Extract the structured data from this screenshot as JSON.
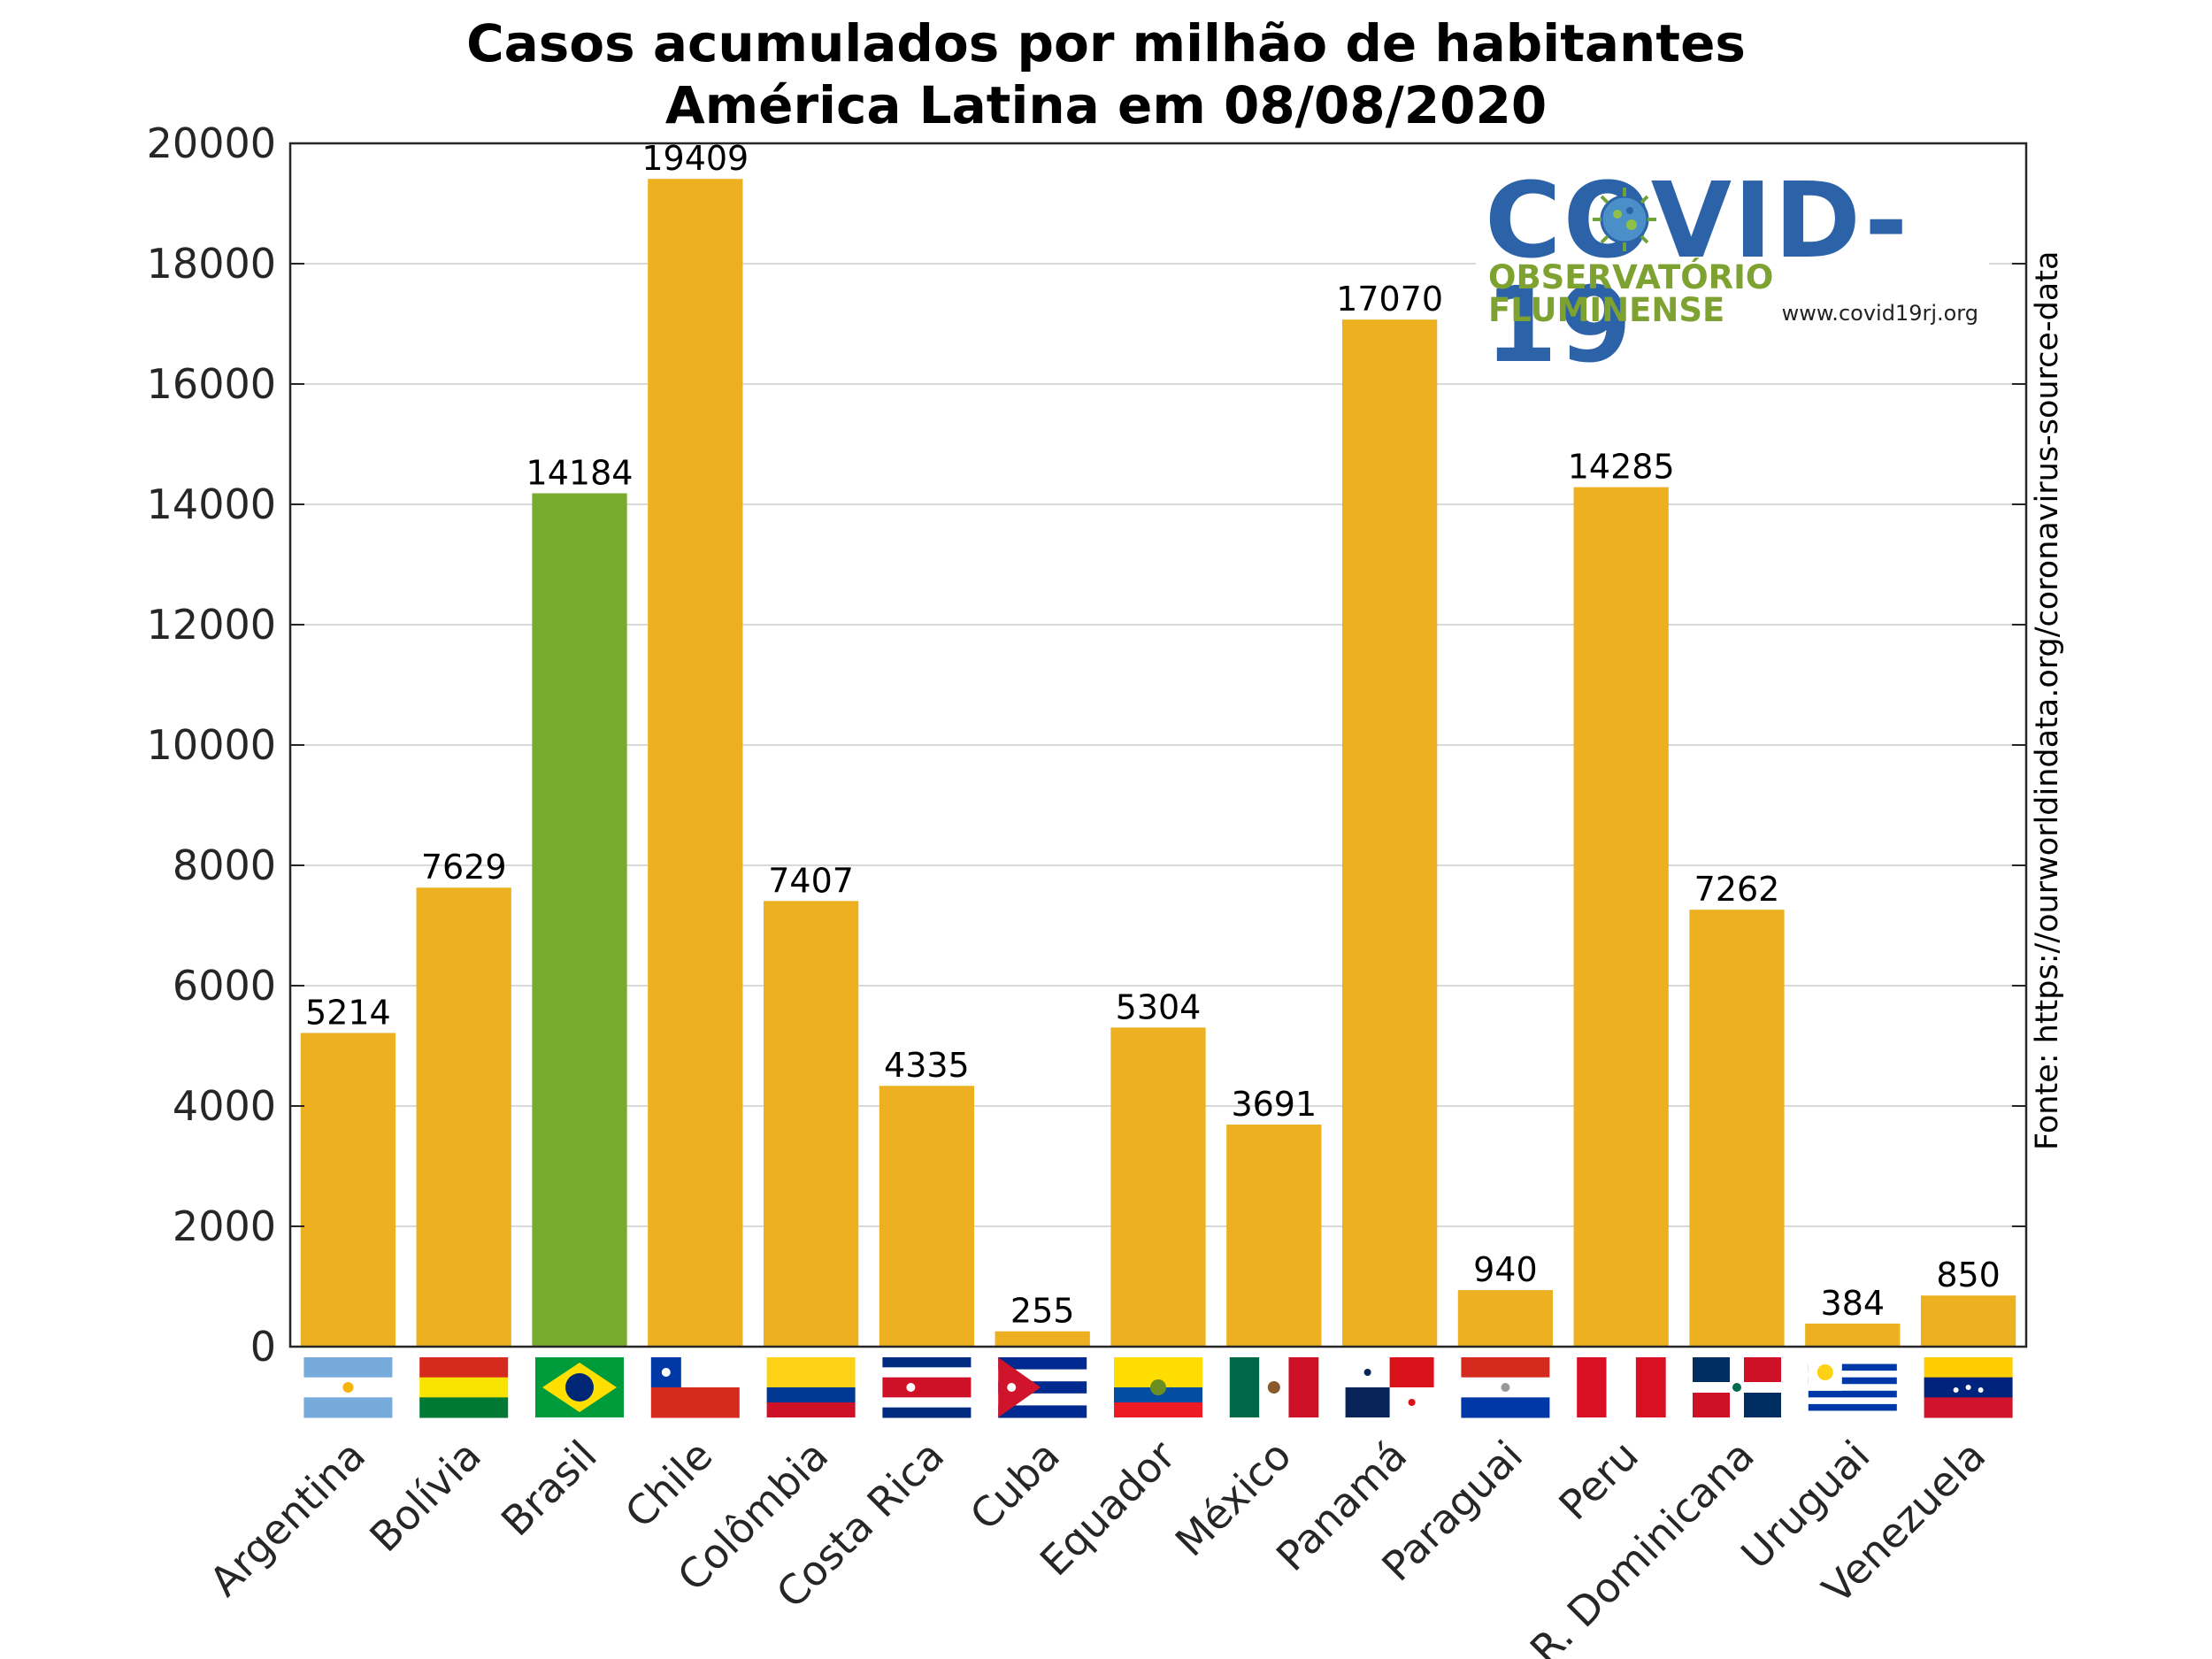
{
  "chart_data": {
    "type": "bar",
    "title_lines": [
      "Casos acumulados por milhão de habitantes",
      "América Latina em 08/08/2020"
    ],
    "source": "Fonte: https://ourworldindata.org/coronavirus-source-data",
    "categories": [
      "Argentina",
      "Bolívia",
      "Brasil",
      "Chile",
      "Colômbia",
      "Costa Rica",
      "Cuba",
      "Equador",
      "México",
      "Panamá",
      "Paraguai",
      "Peru",
      "R. Dominicana",
      "Uruguai",
      "Venezuela"
    ],
    "values": [
      5214,
      7629,
      14184,
      19409,
      7407,
      4335,
      255,
      5304,
      3691,
      17070,
      940,
      14285,
      7262,
      384,
      850
    ],
    "data_labels": [
      "5214",
      "7629",
      "14184",
      "19409",
      "7407",
      "4335",
      "255",
      "5304",
      "3691",
      "17070",
      "940",
      "14285",
      "7262",
      "384",
      "850"
    ],
    "highlight_category": "Brasil",
    "ylim": [
      0,
      20000
    ],
    "yticks": [
      0,
      2000,
      4000,
      6000,
      8000,
      10000,
      12000,
      14000,
      16000,
      18000,
      20000
    ],
    "ytick_labels": [
      "0",
      "2000",
      "4000",
      "6000",
      "8000",
      "10000",
      "12000",
      "14000",
      "16000",
      "18000",
      "20000"
    ],
    "grid": true,
    "colors": {
      "bar": "#ecb020",
      "highlight": "#77ac30",
      "grid": "#d9d9d9",
      "axis": "#262626"
    }
  },
  "logo": {
    "main": "COVID-19",
    "sub": "OBSERVATÓRIO FLUMINENSE",
    "url": "www.covid19rj.org"
  }
}
